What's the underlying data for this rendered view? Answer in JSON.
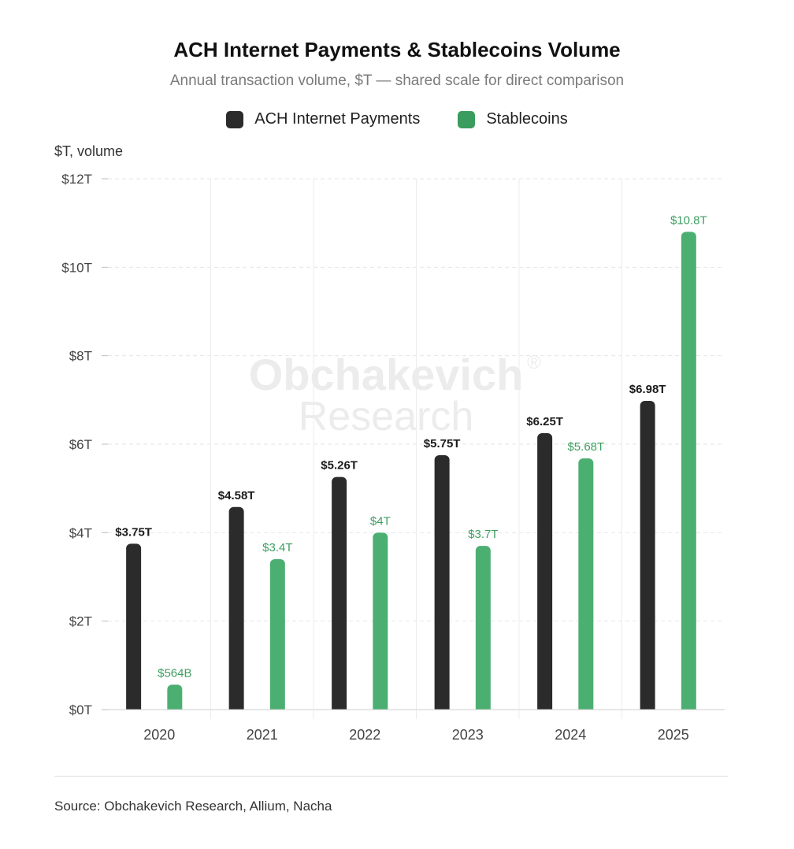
{
  "chart_data": {
    "type": "bar",
    "title": "ACH Internet Payments & Stablecoins Volume",
    "subtitle": "Annual transaction volume, $T — shared scale for direct comparison",
    "ylabel": "$T, volume",
    "xlabel": "",
    "categories": [
      "2020",
      "2021",
      "2022",
      "2023",
      "2024",
      "2025"
    ],
    "series": [
      {
        "name": "ACH Internet Payments",
        "color": "#2b2b2b",
        "label_color": "#1a1a1a",
        "values": [
          3.75,
          4.58,
          5.26,
          5.75,
          6.25,
          6.98
        ],
        "labels": [
          "$3.75T",
          "$4.58T",
          "$5.26T",
          "$5.75T",
          "$6.25T",
          "$6.98T"
        ]
      },
      {
        "name": "Stablecoins",
        "color": "#4caf72",
        "label_color": "#3d9e60",
        "values": [
          0.564,
          3.4,
          4.0,
          3.7,
          5.68,
          10.8
        ],
        "labels": [
          "$564B",
          "$3.4T",
          "$4T",
          "$3.7T",
          "$5.68T",
          "$10.8T"
        ]
      }
    ],
    "ylim": [
      0,
      12
    ],
    "yticks": [
      0,
      2,
      4,
      6,
      8,
      10,
      12
    ],
    "ytick_labels": [
      "$0T",
      "$2T",
      "$4T",
      "$6T",
      "$8T",
      "$10T",
      "$12T"
    ],
    "grid": true,
    "legend_position": "top-center"
  },
  "watermark": {
    "line1": "Obchakevich",
    "line2": "Research",
    "mark": "®"
  },
  "source": "Source: Obchakevich Research, Allium, Nacha"
}
